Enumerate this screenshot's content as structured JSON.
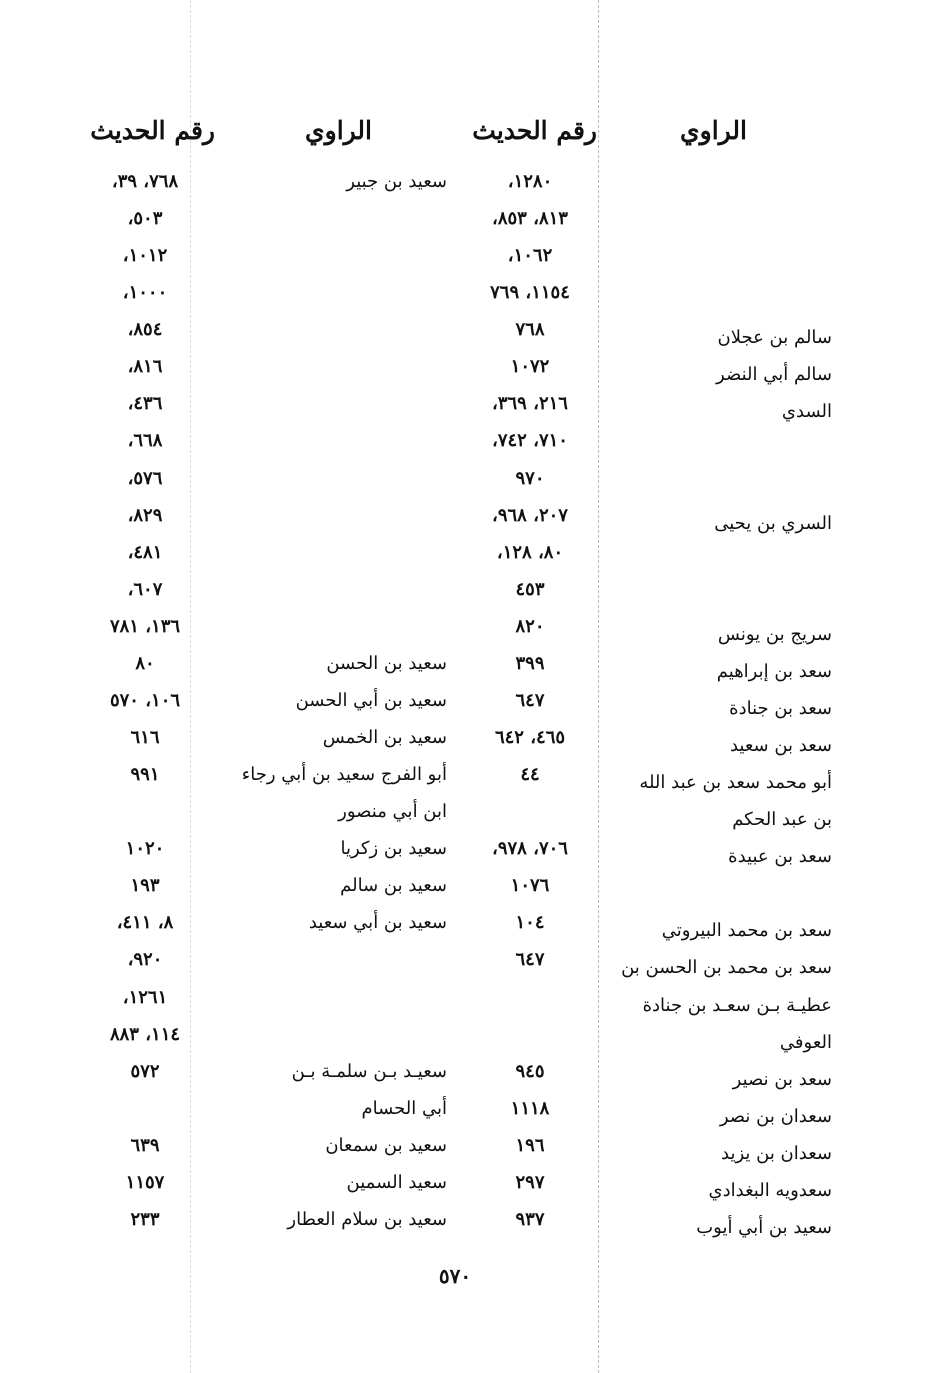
{
  "headers": {
    "right_narrator": "الراوي",
    "right_number": "رقم الحديث",
    "left_narrator": "الراوي",
    "left_number": "رقم الحديث"
  },
  "rows": [
    {
      "rname": "",
      "rnum": "١٢٨٠،",
      "lname": "سعيد بن جبير",
      "lnum": "٧٦٨، ٣٩،"
    },
    {
      "rname": "",
      "rnum": "٨١٣، ٨٥٣،",
      "lname": "",
      "lnum": "٥٠٣،"
    },
    {
      "rname": "",
      "rnum": "١٠٦٢،",
      "lname": "",
      "lnum": "١٠١٢،"
    },
    {
      "rname": "",
      "rnum": "١١٥٤، ٧٦٩",
      "lname": "",
      "lnum": "١٠٠٠،"
    },
    {
      "rname": "سالم بن عجلان",
      "rnum": "٧٦٨",
      "lname": "",
      "lnum": "٨٥٤،"
    },
    {
      "rname": "سالم أبي النضر",
      "rnum": "١٠٧٢",
      "lname": "",
      "lnum": "٨١٦،"
    },
    {
      "rname": "السدي",
      "rnum": "٢١٦، ٣٦٩،",
      "lname": "",
      "lnum": "٤٣٦،"
    },
    {
      "rname": "",
      "rnum": "٧١٠، ٧٤٢،",
      "lname": "",
      "lnum": "٦٦٨،"
    },
    {
      "rname": "",
      "rnum": "٩٧٠",
      "lname": "",
      "lnum": "٥٧٦،"
    },
    {
      "rname": "السري بن يحيى",
      "rnum": "٢٠٧، ٩٦٨،",
      "lname": "",
      "lnum": "٨٢٩،"
    },
    {
      "rname": "",
      "rnum": "٨٠، ١٢٨،",
      "lname": "",
      "lnum": "٤٨١،"
    },
    {
      "rname": "",
      "rnum": "٤٥٣",
      "lname": "",
      "lnum": "٦٠٧،"
    },
    {
      "rname": "سريج بن يونس",
      "rnum": "٨٢٠",
      "lname": "",
      "lnum": "١٣٦، ٧٨١"
    },
    {
      "rname": "سعد بن إبراهيم",
      "rnum": "٣٩٩",
      "lname": "سعيد بن الحسن",
      "lnum": "٨٠"
    },
    {
      "rname": "سعد بن جنادة",
      "rnum": "٦٤٧",
      "lname": "سعيد بن أبي الحسن",
      "lnum": "١٠٦، ٥٧٠"
    },
    {
      "rname": "سعد بن سعيد",
      "rnum": "٤٦٥، ٦٤٢",
      "lname": "سعيد بن الخمس",
      "lnum": "٦١٦"
    },
    {
      "rname": "أبو محمد سعد بن عبد الله",
      "rnum": "٤٤",
      "lname": "أبو الفرج سعيد بن أبي رجاء",
      "lnum": "٩٩١"
    },
    {
      "rname": "بن عبد الحكم",
      "rnum": "",
      "lname": "ابن أبي منصور",
      "lnum": ""
    },
    {
      "rname": "سعد بن عبيدة",
      "rnum": "٧٠٦، ٩٧٨،",
      "lname": "سعيد بن زكريا",
      "lnum": "١٠٢٠"
    },
    {
      "rname": "",
      "rnum": "١٠٧٦",
      "lname": "سعيد بن سالم",
      "lnum": "١٩٣"
    },
    {
      "rname": "سعد بن محمد البيروتي",
      "rnum": "١٠٤",
      "lname": "سعيد بن أبي سعيد",
      "lnum": "٨، ٤١١،"
    },
    {
      "rname": "سعد بن محمد بن الحسن بن",
      "rnum": "٦٤٧",
      "lname": "",
      "lnum": "٩٢٠،"
    },
    {
      "rname": "عطيـة بـن سعـد بن جنادة",
      "rnum": "",
      "lname": "",
      "lnum": "١٢٦١،"
    },
    {
      "rname": "العوفي",
      "rnum": "",
      "lname": "",
      "lnum": "١١٤، ٨٨٣"
    },
    {
      "rname": "سعد بن نصير",
      "rnum": "٩٤٥",
      "lname": "سعيـد بـن سلمـة بـن",
      "lnum": "٥٧٢"
    },
    {
      "rname": "سعدان بن نصر",
      "rnum": "١١١٨",
      "lname": "أبي الحسام",
      "lnum": ""
    },
    {
      "rname": "سعدان بن يزيد",
      "rnum": "١٩٦",
      "lname": "سعيد بن سمعان",
      "lnum": "٦٣٩"
    },
    {
      "rname": "سعدويه البغدادي",
      "rnum": "٢٩٧",
      "lname": "سعيد السمين",
      "lnum": "١١٥٧"
    },
    {
      "rname": "سعيد بن أبي أيوب",
      "rnum": "٩٣٧",
      "lname": "سعيد بن سلام العطار",
      "lnum": "٢٣٣"
    }
  ],
  "page_number": "٥٧٠"
}
